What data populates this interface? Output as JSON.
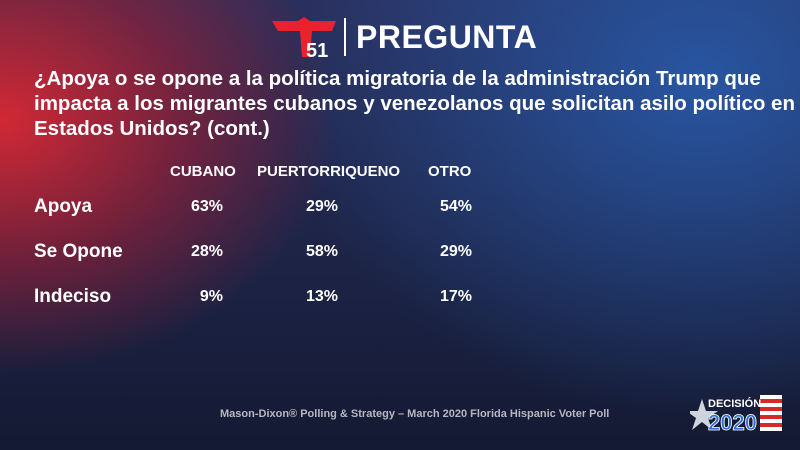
{
  "header": {
    "logo_text": "51",
    "title": "PREGUNTA"
  },
  "question": "¿Apoya o se opone a la política migratoria de la administración Trump que impacta a los migrantes cubanos y venezolanos que solicitan asilo político en Estados Unidos? (cont.)",
  "columns": [
    "CUBANO",
    "PUERTORRIQUENO",
    "OTRO"
  ],
  "rows": [
    {
      "label": "Apoya",
      "values": [
        "63%",
        "29%",
        "54%"
      ]
    },
    {
      "label": "Se Opone",
      "values": [
        "28%",
        "58%",
        "29%"
      ]
    },
    {
      "label": "Indeciso",
      "values": [
        "9%",
        "13%",
        "17%"
      ]
    }
  ],
  "footer": "Mason-Dixon® Polling & Strategy – March 2020 Florida Hispanic Voter Poll",
  "badge": {
    "line1": "DECISIÓN",
    "line2": "2020"
  },
  "colors": {
    "brand_red": "#e8232b",
    "badge_blue": "#2f6fd6"
  }
}
